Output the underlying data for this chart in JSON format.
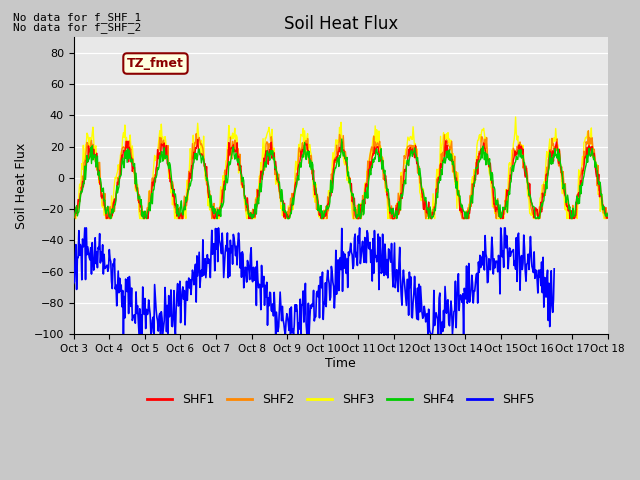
{
  "title": "Soil Heat Flux",
  "ylabel": "Soil Heat Flux",
  "xlabel": "Time",
  "annotation_line1": "No data for f_SHF_1",
  "annotation_line2": "No data for f_SHF_2",
  "legend_label": "TZ_fmet",
  "ylim": [
    -100,
    90
  ],
  "yticks": [
    -100,
    -80,
    -60,
    -40,
    -20,
    0,
    20,
    40,
    60,
    80
  ],
  "xtick_labels": [
    "Oct 3",
    "Oct 4",
    "Oct 5",
    "Oct 6",
    "Oct 7",
    "Oct 8",
    "Oct 9",
    "Oct 10",
    "Oct 11",
    "Oct 12",
    "Oct 13",
    "Oct 14",
    "Oct 15",
    "Oct 16",
    "Oct 17",
    "Oct 18"
  ],
  "colors": {
    "SHF1": "#ff0000",
    "SHF2": "#ff8800",
    "SHF3": "#ffff00",
    "SHF4": "#00cc00",
    "SHF5": "#0000ff"
  },
  "fig_bg": "#c8c8c8",
  "plot_bg": "#e8e8e8"
}
